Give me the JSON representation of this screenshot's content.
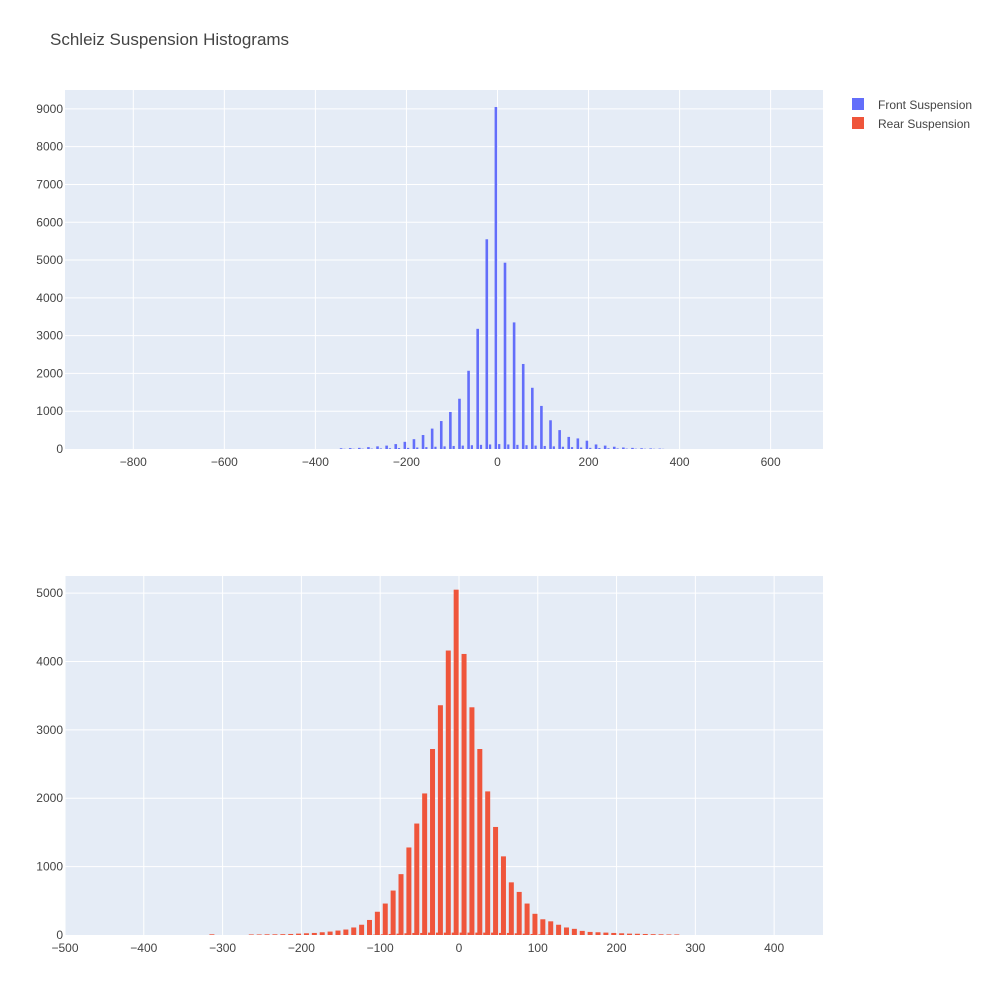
{
  "chart_data": {
    "type": "bar",
    "title": "Schleiz Suspension Histograms",
    "legend": {
      "placement": "top-right",
      "items": [
        {
          "name": "Front Suspension",
          "color": "#636efa"
        },
        {
          "name": "Rear Suspension",
          "color": "#ef553b"
        }
      ]
    },
    "grid": true,
    "subplots": [
      {
        "series_name": "Front Suspension",
        "color": "#636efa",
        "xlim": [
          -950,
          715
        ],
        "ylim": [
          0,
          9500
        ],
        "xticks": [
          -800,
          -600,
          -400,
          -200,
          0,
          200,
          400,
          600
        ],
        "yticks": [
          0,
          1000,
          2000,
          3000,
          4000,
          5000,
          6000,
          7000,
          8000,
          9000
        ],
        "x": [
          -340,
          -320,
          -300,
          -280,
          -260,
          -240,
          -220,
          -200,
          -180,
          -160,
          -140,
          -120,
          -100,
          -80,
          -60,
          -40,
          -20,
          0,
          20,
          40,
          60,
          80,
          100,
          120,
          140,
          160,
          180,
          200,
          220,
          240,
          260,
          280,
          300,
          320,
          340,
          360
        ],
        "values": [
          20,
          25,
          30,
          50,
          70,
          90,
          130,
          190,
          260,
          370,
          540,
          740,
          980,
          1330,
          2070,
          3180,
          5550,
          9050,
          4930,
          3350,
          2250,
          1620,
          1140,
          760,
          500,
          320,
          280,
          220,
          120,
          90,
          60,
          40,
          30,
          20,
          15,
          10
        ],
        "minor_values": [
          5,
          6,
          8,
          10,
          15,
          20,
          25,
          30,
          40,
          50,
          60,
          70,
          80,
          90,
          100,
          110,
          120,
          130,
          120,
          110,
          100,
          90,
          80,
          70,
          60,
          50,
          40,
          30,
          25,
          20,
          15,
          10,
          8,
          6,
          5,
          4
        ]
      },
      {
        "series_name": "Rear Suspension",
        "color": "#ef553b",
        "xlim": [
          -500,
          462
        ],
        "ylim": [
          0,
          5250
        ],
        "xticks": [
          -500,
          -400,
          -300,
          -200,
          -100,
          0,
          100,
          200,
          300,
          400
        ],
        "yticks": [
          0,
          1000,
          2000,
          3000,
          4000,
          5000
        ],
        "x": [
          -310,
          -260,
          -250,
          -240,
          -230,
          -220,
          -210,
          -200,
          -190,
          -180,
          -170,
          -160,
          -150,
          -140,
          -130,
          -120,
          -110,
          -100,
          -90,
          -80,
          -70,
          -60,
          -50,
          -40,
          -30,
          -20,
          -10,
          0,
          10,
          20,
          30,
          40,
          50,
          60,
          70,
          80,
          90,
          100,
          110,
          120,
          130,
          140,
          150,
          160,
          170,
          180,
          190,
          200,
          210,
          220,
          230,
          240,
          250,
          260,
          270,
          280
        ],
        "values": [
          10,
          8,
          8,
          10,
          10,
          12,
          15,
          20,
          25,
          30,
          40,
          50,
          65,
          80,
          110,
          150,
          220,
          340,
          460,
          650,
          890,
          1280,
          1630,
          2070,
          2720,
          3360,
          4160,
          5050,
          4110,
          3330,
          2720,
          2100,
          1580,
          1150,
          770,
          630,
          460,
          310,
          230,
          200,
          150,
          110,
          90,
          60,
          45,
          40,
          35,
          30,
          25,
          20,
          18,
          15,
          12,
          10,
          8,
          8
        ],
        "minor_values": [
          0,
          0,
          0,
          0,
          0,
          0,
          0,
          0,
          0,
          0,
          0,
          0,
          0,
          0,
          0,
          0,
          5,
          10,
          15,
          20,
          25,
          30,
          30,
          35,
          35,
          35,
          35,
          35,
          35,
          35,
          35,
          35,
          30,
          30,
          25,
          20,
          15,
          10,
          5,
          0,
          0,
          0,
          0,
          0,
          0,
          0,
          0,
          0,
          0,
          0,
          0,
          0,
          0,
          0,
          0,
          0
        ]
      }
    ]
  }
}
